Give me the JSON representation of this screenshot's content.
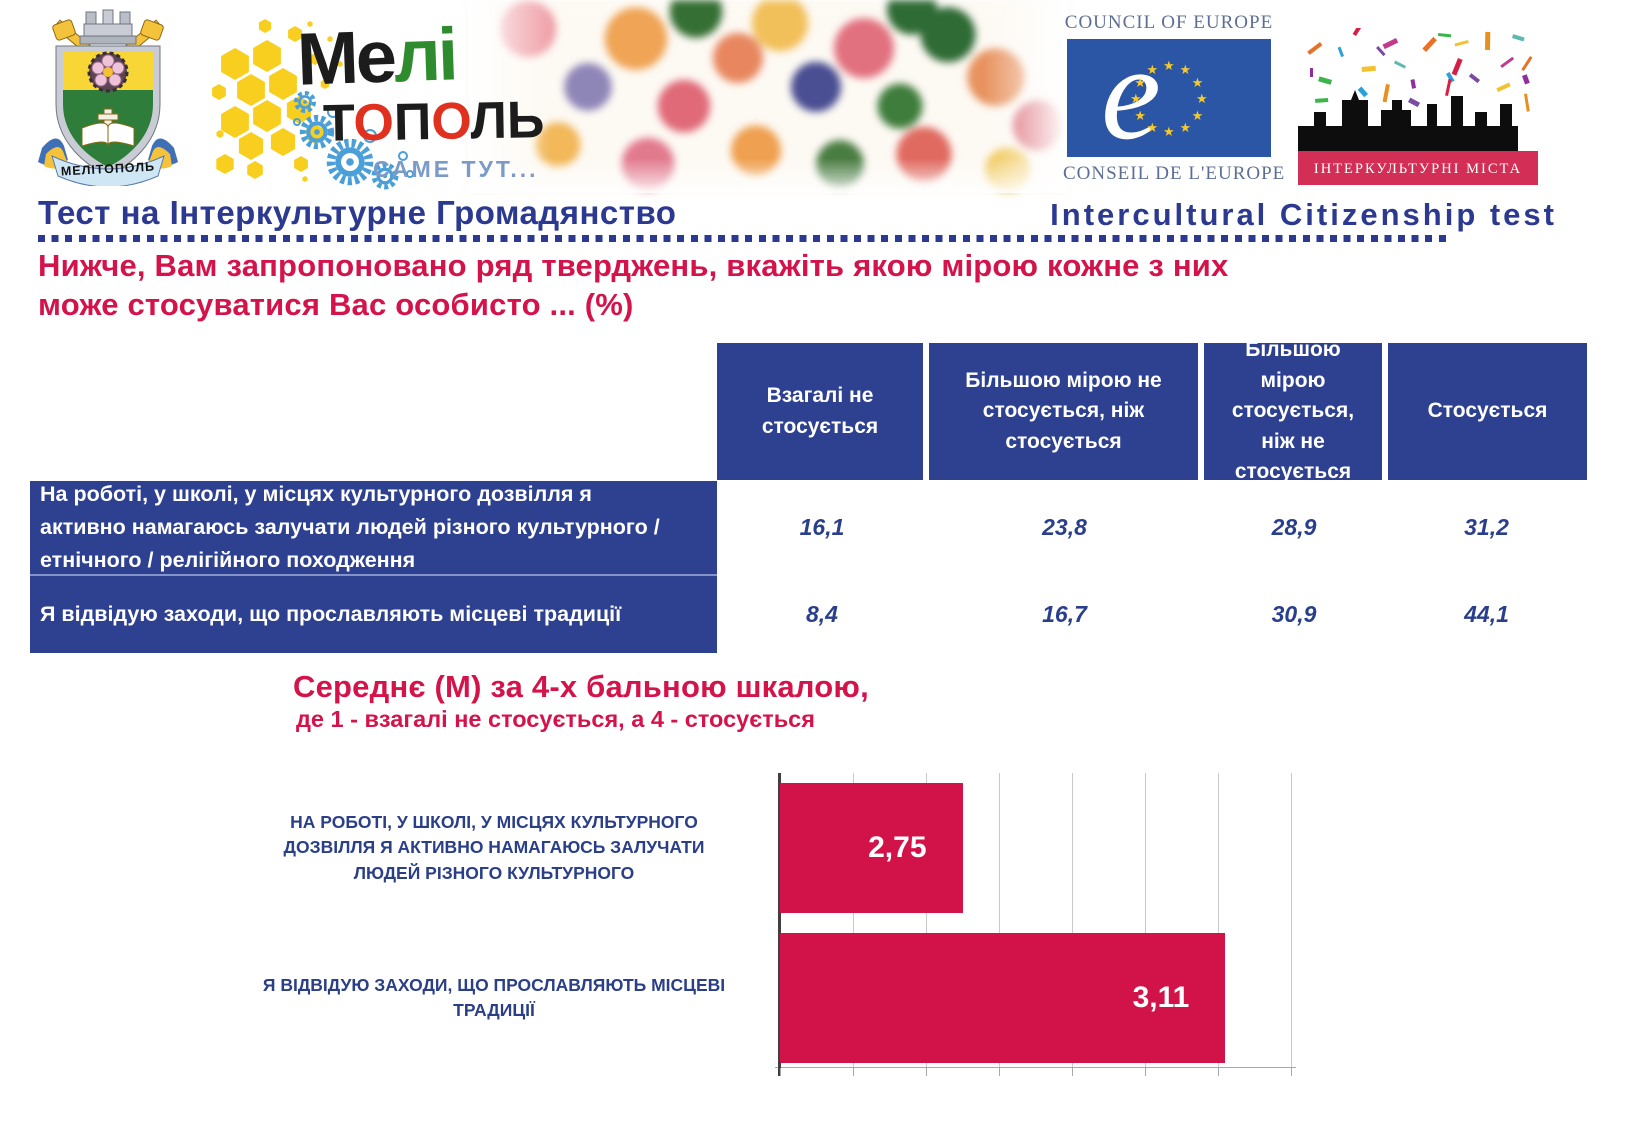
{
  "banner": {
    "coat_of_arms": {
      "ribbon_text": "МЕЛІТОПОЛЬ"
    },
    "melitopol_logo": {
      "line1_black": "Ме",
      "line1_green": "лі",
      "line2_t": "Т",
      "line2_o1": "О",
      "line2_p": "П",
      "line2_o2": "О",
      "line2_l": "ЛЬ",
      "tagline": "САМЕ ТУТ..."
    },
    "council_of_europe": {
      "top_text": "COUNCIL OF EUROPE",
      "bottom_text": "CONSEIL DE L'EUROPE",
      "e_glyph": "e"
    },
    "intercultural_cities": {
      "band_text": "ІНТЕРКУЛЬТУРНІ МІСТА"
    }
  },
  "titlebar": {
    "left": "Тест на Інтеркультурне Громадянство",
    "right": "Intercultural Citizenship test"
  },
  "heading": {
    "line1": "Нижче, Вам запропоновано ряд тверджень, вкажіть якою мірою кожне з них",
    "line2": "може стосуватися Вас особисто ... (%)"
  },
  "table": {
    "columns": [
      "Взагалі не стосується",
      "Більшою мірою не стосується, ніж стосується",
      "Більшою мірою стосується, ніж не стосується",
      "Стосується"
    ],
    "rows": [
      {
        "label": "На роботі, у школі, у місцях культурного дозвілля я активно намагаюсь залучати людей різного культурного / етнічного / релігійного походження",
        "values": [
          "16,1",
          "23,8",
          "28,9",
          "31,2"
        ]
      },
      {
        "label": "Я відвідую заходи, що прославляють місцеві традиції",
        "values": [
          "8,4",
          "16,7",
          "30,9",
          "44,1"
        ]
      }
    ]
  },
  "chart_data": {
    "type": "bar",
    "orientation": "horizontal",
    "title": "Середнє (М) за 4-х бальною шкалою,",
    "subtitle": "де 1 - взагалі не стосується, а 4 - стосується",
    "categories": [
      "НА РОБОТІ, У ШКОЛІ, У МІСЦЯХ КУЛЬТУРНОГО ДОЗВІЛЛЯ Я АКТИВНО НАМАГАЮСЬ ЗАЛУЧАТИ ЛЮДЕЙ РІЗНОГО КУЛЬТУРНОГО",
      "Я ВІДВІДУЮ ЗАХОДИ, ЩО ПРОСЛАВЛЯЮТЬ МІСЦЕВІ ТРАДИЦІЇ"
    ],
    "values": [
      2.75,
      3.11
    ],
    "value_labels": [
      "2,75",
      "3,11"
    ],
    "xlim": [
      2.5,
      3.2
    ],
    "grid_step": 0.1,
    "grid": true,
    "legend": "none",
    "bar_color": "#d2134a"
  },
  "colors": {
    "table_blue": "#2e4191",
    "heading_red": "#d5134b",
    "bar_red": "#d2134a",
    "title_navy": "#2b3990",
    "coe_blue": "#2b55a5",
    "icc_band_red": "#d32e55",
    "value_navy": "#2a3f8c"
  }
}
